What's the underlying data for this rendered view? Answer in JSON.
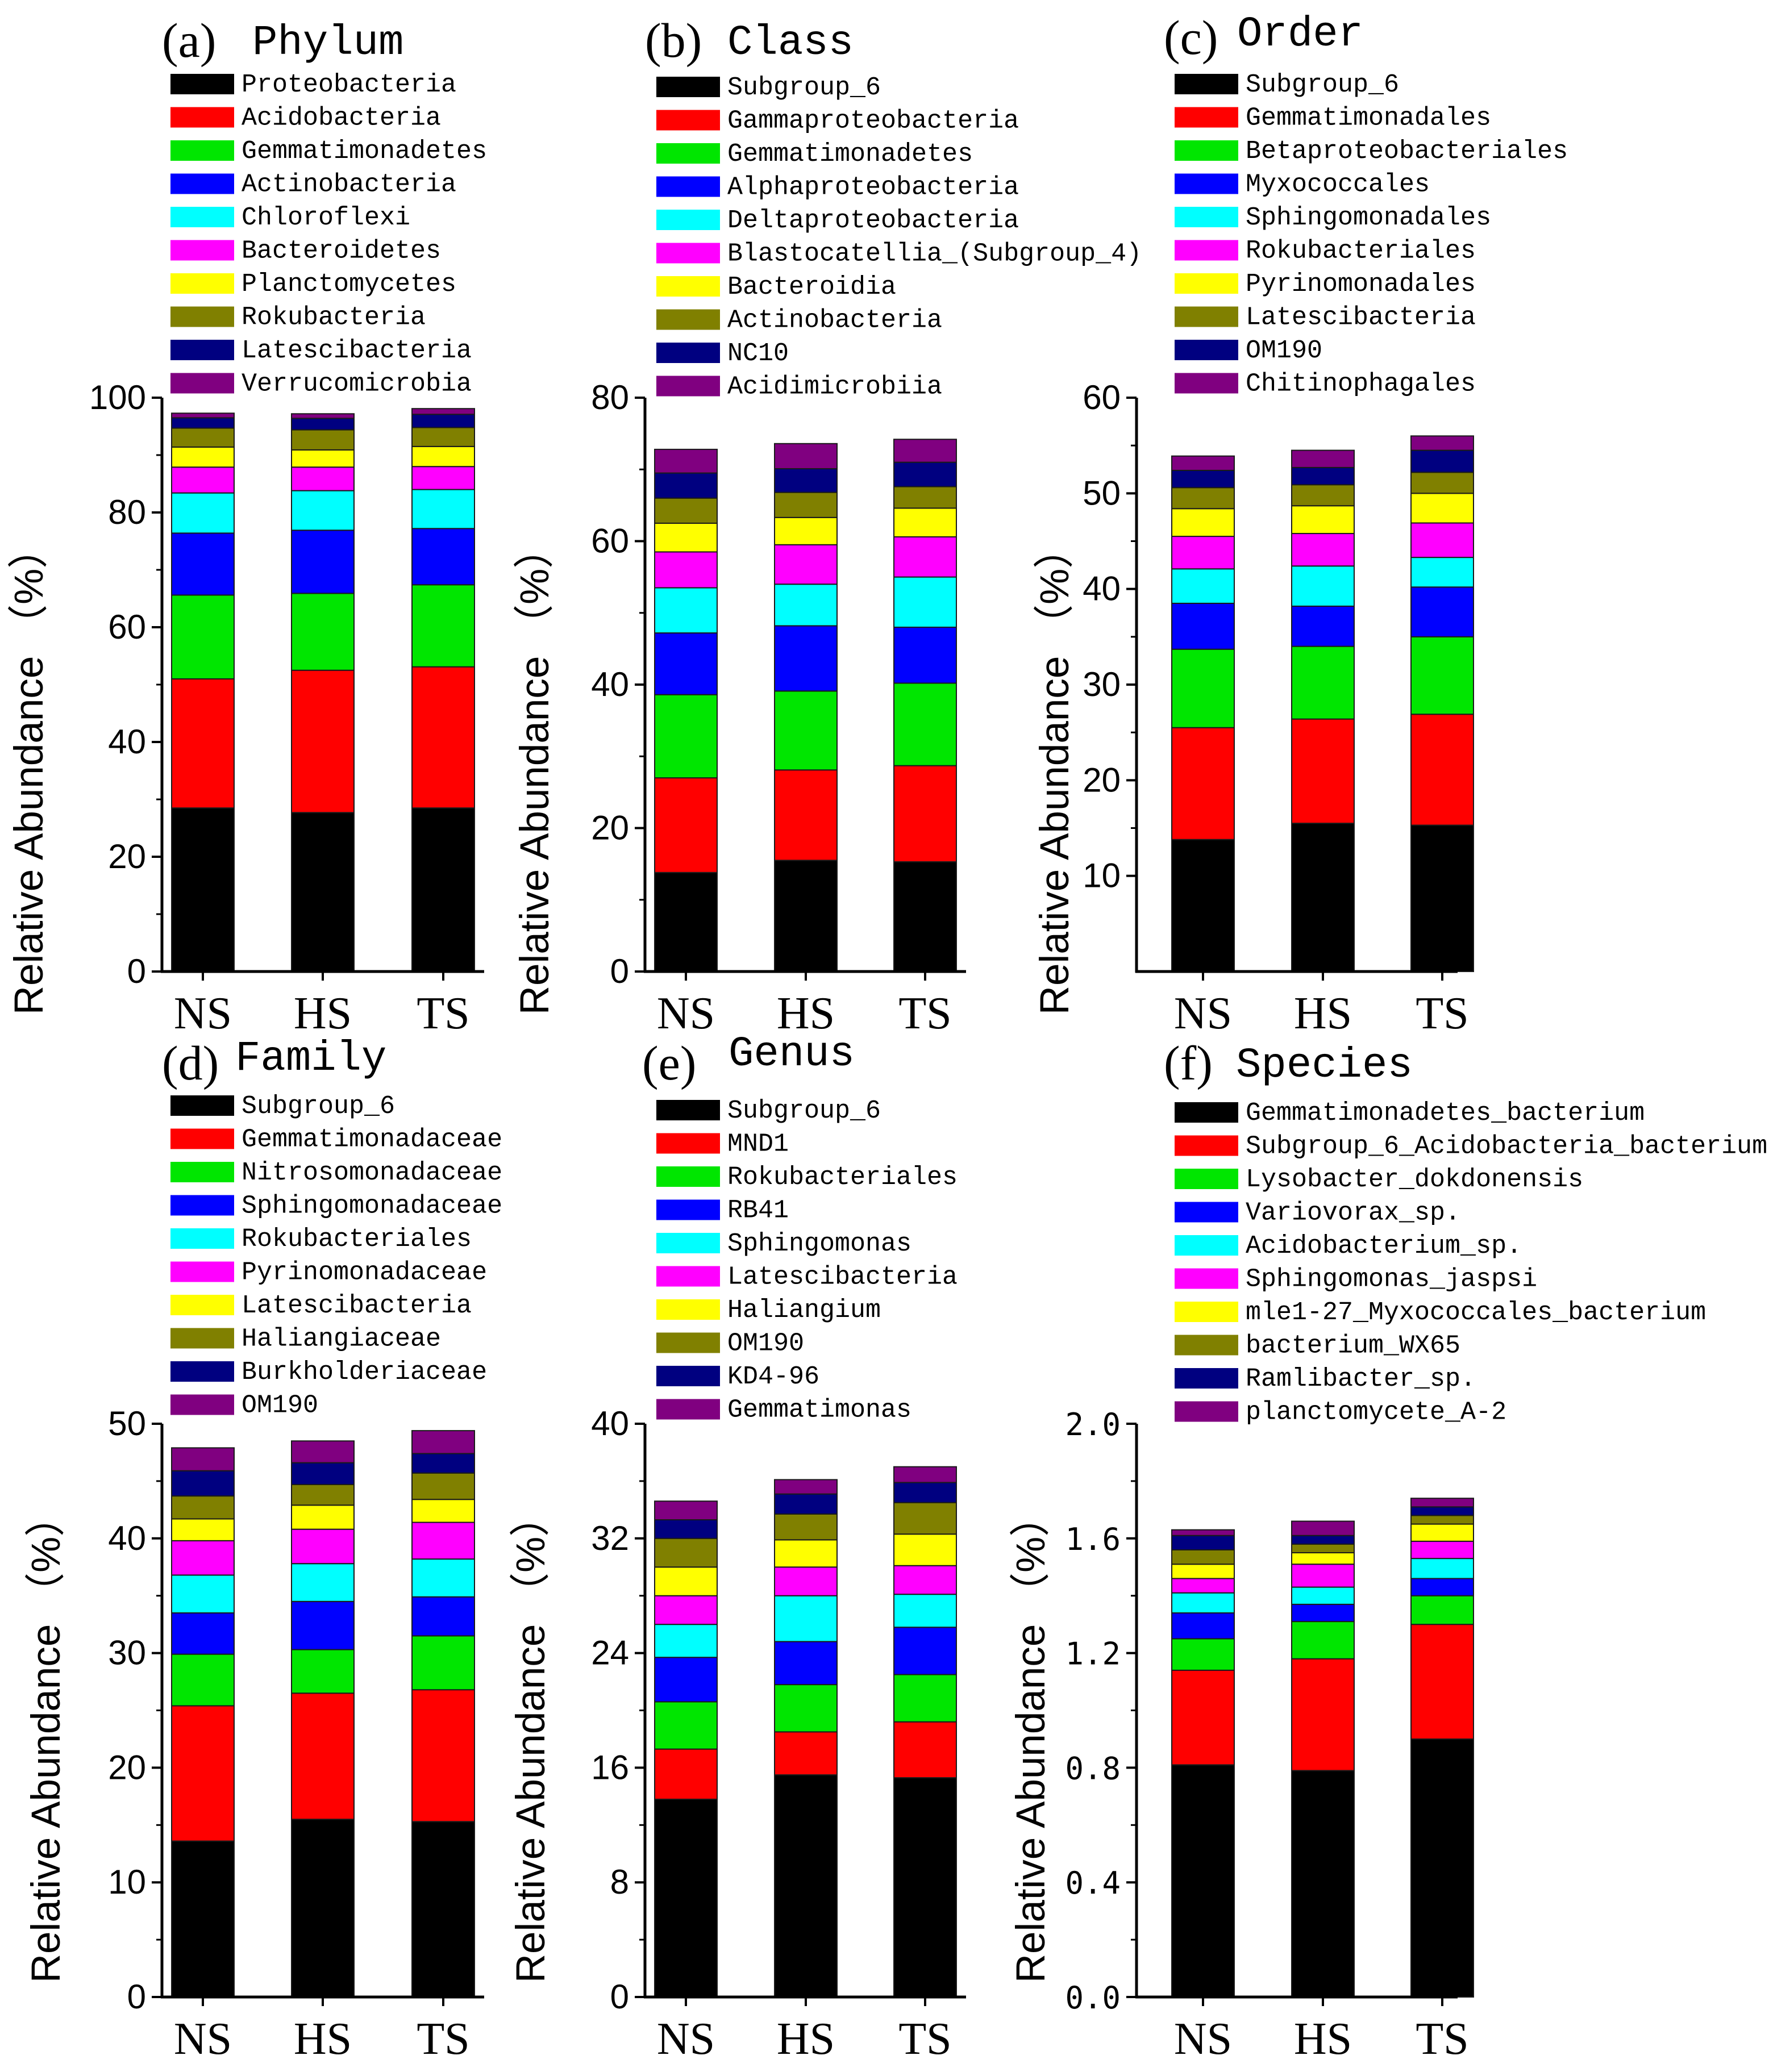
{
  "colors": [
    "#000000",
    "#ff0000",
    "#00e600",
    "#0000ff",
    "#00ffff",
    "#ff00ff",
    "#ffff00",
    "#808000",
    "#000080",
    "#800080"
  ],
  "axis_title": "Relative Abundance （%）",
  "chart_data": [
    {
      "type": "bar",
      "stacked": true,
      "panel_label": "(a)",
      "title": "Phylum",
      "ylabel": "Relative Abundance （%）",
      "categories": [
        "NS",
        "HS",
        "TS"
      ],
      "ylim": [
        0,
        100
      ],
      "yticks": [
        0,
        20,
        40,
        60,
        80,
        100
      ],
      "yticklabels": [
        "0",
        "20",
        "40",
        "60",
        "80",
        "100"
      ],
      "series": [
        {
          "name": "Proteobacteria",
          "values": [
            28.5,
            27.7,
            28.5
          ]
        },
        {
          "name": "Acidobacteria",
          "values": [
            22.5,
            24.8,
            24.6
          ]
        },
        {
          "name": "Gemmatimonadetes",
          "values": [
            14.6,
            13.4,
            14.3
          ]
        },
        {
          "name": "Actinobacteria",
          "values": [
            10.8,
            11.0,
            9.8
          ]
        },
        {
          "name": "Chloroflexi",
          "values": [
            7.0,
            6.9,
            6.8
          ]
        },
        {
          "name": "Bacteroidetes",
          "values": [
            4.5,
            4.1,
            4.0
          ]
        },
        {
          "name": "Planctomycetes",
          "values": [
            3.5,
            3.0,
            3.5
          ]
        },
        {
          "name": "Rokubacteria",
          "values": [
            3.3,
            3.5,
            3.3
          ]
        },
        {
          "name": "Latescibacteria",
          "values": [
            1.8,
            2.0,
            2.3
          ]
        },
        {
          "name": "Verrucomicrobia",
          "values": [
            0.8,
            0.8,
            1.0
          ]
        }
      ]
    },
    {
      "type": "bar",
      "stacked": true,
      "panel_label": "(b)",
      "title": "Class",
      "ylabel": "Relative Abundance （%）",
      "categories": [
        "NS",
        "HS",
        "TS"
      ],
      "ylim": [
        0,
        80
      ],
      "yticks": [
        0,
        20,
        40,
        60,
        80
      ],
      "yticklabels": [
        "0",
        "20",
        "40",
        "60",
        "80"
      ],
      "series": [
        {
          "name": "Subgroup_6",
          "values": [
            13.8,
            15.5,
            15.3
          ]
        },
        {
          "name": "Gammaproteobacteria",
          "values": [
            13.2,
            12.6,
            13.4
          ]
        },
        {
          "name": "Gemmatimonadetes",
          "values": [
            11.6,
            11.0,
            11.5
          ]
        },
        {
          "name": "Alphaproteobacteria",
          "values": [
            8.6,
            9.1,
            7.8
          ]
        },
        {
          "name": "Deltaproteobacteria",
          "values": [
            6.3,
            5.8,
            7.0
          ]
        },
        {
          "name": "Blastocatellia_(Subgroup_4)",
          "values": [
            5.0,
            5.5,
            5.6
          ]
        },
        {
          "name": "Bacteroidia",
          "values": [
            4.0,
            3.8,
            4.0
          ]
        },
        {
          "name": "Actinobacteria",
          "values": [
            3.5,
            3.5,
            3.0
          ]
        },
        {
          "name": "NC10",
          "values": [
            3.5,
            3.3,
            3.4
          ]
        },
        {
          "name": "Acidimicrobiia",
          "values": [
            3.3,
            3.5,
            3.2
          ]
        }
      ]
    },
    {
      "type": "bar",
      "stacked": true,
      "panel_label": "(c)",
      "title": "Order",
      "ylabel": "Relative Abundance （%）",
      "categories": [
        "NS",
        "HS",
        "TS"
      ],
      "ylim": [
        0,
        60
      ],
      "yticks": [
        10,
        20,
        30,
        40,
        50,
        60
      ],
      "yticklabels": [
        "10",
        "20",
        "30",
        "40",
        "50",
        "60"
      ],
      "series": [
        {
          "name": "Subgroup_6",
          "values": [
            13.8,
            15.5,
            15.3
          ]
        },
        {
          "name": "Gemmatimonadales",
          "values": [
            11.7,
            10.9,
            11.6
          ]
        },
        {
          "name": "Betaproteobacteriales",
          "values": [
            8.2,
            7.6,
            8.1
          ]
        },
        {
          "name": "Myxococcales",
          "values": [
            4.8,
            4.2,
            5.2
          ]
        },
        {
          "name": "Sphingomonadales",
          "values": [
            3.6,
            4.2,
            3.1
          ]
        },
        {
          "name": "Rokubacteriales",
          "values": [
            3.4,
            3.4,
            3.6
          ]
        },
        {
          "name": "Pyrinomonadales",
          "values": [
            2.9,
            2.9,
            3.1
          ]
        },
        {
          "name": "Latescibacteria",
          "values": [
            2.2,
            2.2,
            2.2
          ]
        },
        {
          "name": "OM190",
          "values": [
            1.8,
            1.8,
            2.3
          ]
        },
        {
          "name": "Chitinophagales",
          "values": [
            1.5,
            1.8,
            1.5
          ]
        }
      ]
    },
    {
      "type": "bar",
      "stacked": true,
      "panel_label": "(d)",
      "title": "Family",
      "ylabel": "Relative Abundance （%）",
      "categories": [
        "NS",
        "HS",
        "TS"
      ],
      "ylim": [
        0,
        50
      ],
      "yticks": [
        0,
        10,
        20,
        30,
        40,
        50
      ],
      "yticklabels": [
        "0",
        "10",
        "20",
        "30",
        "40",
        "50"
      ],
      "series": [
        {
          "name": "Subgroup_6",
          "values": [
            13.6,
            15.5,
            15.3
          ]
        },
        {
          "name": "Gemmatimonadaceae",
          "values": [
            11.8,
            11.0,
            11.5
          ]
        },
        {
          "name": "Nitrosomonadaceae",
          "values": [
            4.5,
            3.8,
            4.7
          ]
        },
        {
          "name": "Sphingomonadaceae",
          "values": [
            3.6,
            4.2,
            3.4
          ]
        },
        {
          "name": "Rokubacteriales",
          "values": [
            3.3,
            3.3,
            3.3
          ]
        },
        {
          "name": "Pyrinomonadaceae",
          "values": [
            3.0,
            3.0,
            3.2
          ]
        },
        {
          "name": "Latescibacteria",
          "values": [
            1.9,
            2.1,
            2.0
          ]
        },
        {
          "name": "Haliangiaceae",
          "values": [
            2.0,
            1.8,
            2.3
          ]
        },
        {
          "name": "Burkholderiaceae",
          "values": [
            2.2,
            1.9,
            1.7
          ]
        },
        {
          "name": "OM190",
          "values": [
            2.0,
            1.9,
            2.0
          ]
        }
      ]
    },
    {
      "type": "bar",
      "stacked": true,
      "panel_label": "(e)",
      "title": "Genus",
      "ylabel": "Relative Abundance （%）",
      "categories": [
        "NS",
        "HS",
        "TS"
      ],
      "ylim": [
        0,
        40
      ],
      "yticks": [
        0,
        8,
        16,
        24,
        32,
        40
      ],
      "yticklabels": [
        "0",
        "8",
        "16",
        "24",
        "32",
        "40"
      ],
      "series": [
        {
          "name": "Subgroup_6",
          "values": [
            13.8,
            15.5,
            15.3
          ]
        },
        {
          "name": "MND1",
          "values": [
            3.5,
            3.0,
            3.9
          ]
        },
        {
          "name": "Rokubacteriales",
          "values": [
            3.3,
            3.3,
            3.3
          ]
        },
        {
          "name": "RB41",
          "values": [
            3.1,
            3.0,
            3.3
          ]
        },
        {
          "name": "Sphingomonas",
          "values": [
            2.3,
            3.2,
            2.3
          ]
        },
        {
          "name": "Latescibacteria",
          "values": [
            2.0,
            2.0,
            2.0
          ]
        },
        {
          "name": "Haliangium",
          "values": [
            2.0,
            1.9,
            2.2
          ]
        },
        {
          "name": "OM190",
          "values": [
            2.0,
            1.8,
            2.2
          ]
        },
        {
          "name": "KD4-96",
          "values": [
            1.3,
            1.4,
            1.4
          ]
        },
        {
          "name": "Gemmatimonas",
          "values": [
            1.3,
            1.0,
            1.1
          ]
        }
      ]
    },
    {
      "type": "bar",
      "stacked": true,
      "panel_label": "(f)",
      "title": "Species",
      "ylabel": "Relative Abundance （%）",
      "categories": [
        "NS",
        "HS",
        "TS"
      ],
      "ylim": [
        0,
        2.0
      ],
      "yticks": [
        0,
        0.4,
        0.8,
        1.2,
        1.6,
        2.0
      ],
      "yticklabels": [
        "0.0",
        "0.4",
        "0.8",
        "1.2",
        "1.6",
        "2.0"
      ],
      "series": [
        {
          "name": "Gemmatimonadetes_bacterium",
          "values": [
            0.81,
            0.79,
            0.9
          ]
        },
        {
          "name": "Subgroup_6_Acidobacteria_bacterium",
          "values": [
            0.33,
            0.39,
            0.4
          ]
        },
        {
          "name": "Lysobacter_dokdonensis",
          "values": [
            0.11,
            0.13,
            0.1
          ]
        },
        {
          "name": "Variovorax_sp.",
          "values": [
            0.09,
            0.06,
            0.06
          ]
        },
        {
          "name": "Acidobacterium_sp.",
          "values": [
            0.07,
            0.06,
            0.07
          ]
        },
        {
          "name": "Sphingomonas_jaspsi",
          "values": [
            0.05,
            0.08,
            0.06
          ]
        },
        {
          "name": "mle1-27_Myxococcales_bacterium",
          "values": [
            0.05,
            0.04,
            0.06
          ]
        },
        {
          "name": "bacterium_WX65",
          "values": [
            0.05,
            0.03,
            0.03
          ]
        },
        {
          "name": "Ramlibacter_sp.",
          "values": [
            0.05,
            0.03,
            0.03
          ]
        },
        {
          "name": "planctomycete_A-2",
          "values": [
            0.02,
            0.05,
            0.03
          ]
        }
      ]
    }
  ]
}
